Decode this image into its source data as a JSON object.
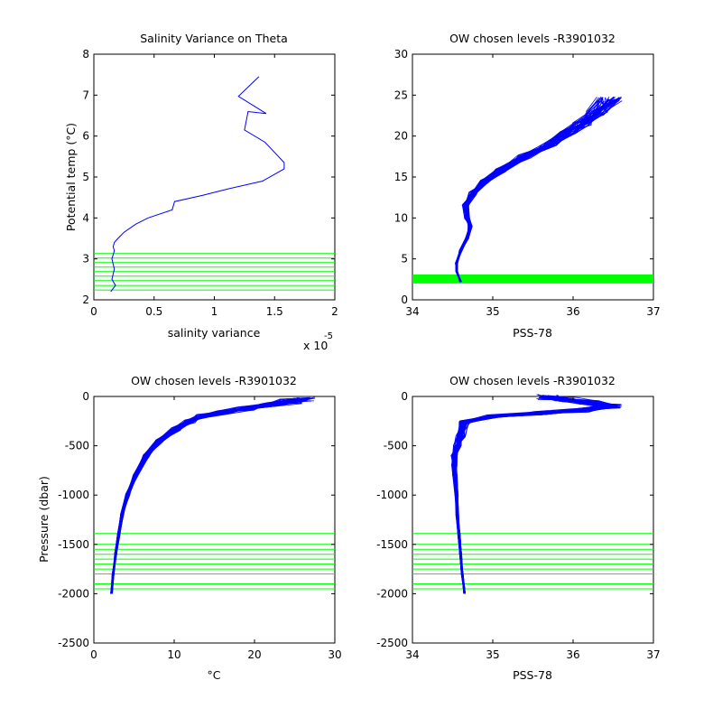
{
  "figure": {
    "background": "#ffffff"
  },
  "chart_data": [
    {
      "id": "p1",
      "type": "line",
      "title": "Salinity Variance on Theta",
      "xlabel": "salinity variance",
      "ylabel": "Potential temp (°C)",
      "x_multiplier_label": "x 10",
      "x_multiplier_exponent": "-5",
      "xlim": [
        0,
        2
      ],
      "ylim": [
        2,
        8
      ],
      "xticks": [
        0,
        0.5,
        1,
        1.5,
        2
      ],
      "yticks": [
        2,
        3,
        4,
        5,
        6,
        7,
        8
      ],
      "series": [
        {
          "color": "#0000ff",
          "x": [
            0.14,
            0.18,
            0.15,
            0.17,
            0.15,
            0.17,
            0.16,
            0.17,
            0.2,
            0.25,
            0.35,
            0.45,
            0.65,
            0.67,
            0.9,
            1.1,
            1.4,
            1.58,
            1.58,
            1.5,
            1.42,
            1.25,
            1.28,
            1.43,
            1.2,
            1.37
          ],
          "y": [
            2.2,
            2.35,
            2.5,
            2.75,
            3.0,
            3.2,
            3.3,
            3.4,
            3.5,
            3.65,
            3.85,
            4.0,
            4.2,
            4.4,
            4.55,
            4.7,
            4.9,
            5.2,
            5.35,
            5.6,
            5.85,
            6.15,
            6.6,
            6.55,
            6.97,
            7.45
          ]
        }
      ],
      "hlines": {
        "color": "#00ff00",
        "y": [
          2.24,
          2.35,
          2.47,
          2.58,
          2.69,
          2.8,
          2.91,
          3.02,
          3.13
        ]
      }
    },
    {
      "id": "p2",
      "type": "line",
      "title": "OW chosen levels -R3901032",
      "xlabel": "PSS-78",
      "ylabel": "",
      "xlim": [
        34,
        37
      ],
      "ylim": [
        0,
        30
      ],
      "xticks": [
        34,
        35,
        36,
        37
      ],
      "yticks": [
        0,
        5,
        10,
        15,
        20,
        25,
        30
      ],
      "profile_color": "#0000ff",
      "bundle": {
        "x": [
          34.6,
          34.55,
          34.55,
          34.6,
          34.68,
          34.72,
          34.68,
          34.66,
          34.75,
          34.9,
          35.1,
          35.4,
          35.7,
          35.95,
          36.1,
          36.3,
          36.45
        ],
        "y": [
          2.2,
          3.5,
          4.5,
          6.0,
          7.5,
          9.0,
          10.0,
          11.5,
          13.0,
          14.5,
          15.8,
          17.5,
          19.0,
          20.5,
          21.5,
          22.8,
          24.5
        ]
      },
      "hband": {
        "color": "#00ff00",
        "y": [
          2.0,
          3.1
        ]
      }
    },
    {
      "id": "p3",
      "type": "line",
      "title": "OW chosen levels -R3901032",
      "xlabel": "°C",
      "ylabel": "Pressure (dbar)",
      "xlim": [
        0,
        30
      ],
      "ylim": [
        -2500,
        0
      ],
      "xticks": [
        0,
        10,
        20,
        30
      ],
      "yticks": [
        -2500,
        -2000,
        -1500,
        -1000,
        -500,
        0
      ],
      "profile_color": "#0000ff",
      "bundle": {
        "x": [
          2.2,
          2.4,
          2.7,
          3.1,
          3.5,
          4.2,
          5.2,
          6.5,
          8.2,
          10.2,
          12.0,
          13.5,
          16.0,
          19.0,
          22.0,
          24.5,
          26.0
        ],
        "y": [
          -2000,
          -1800,
          -1600,
          -1400,
          -1200,
          -1000,
          -800,
          -600,
          -450,
          -330,
          -250,
          -200,
          -160,
          -120,
          -80,
          -50,
          -30
        ]
      },
      "hlines": {
        "color": "#00ff00",
        "y": [
          -1390,
          -1500,
          -1550,
          -1600,
          -1650,
          -1700,
          -1750,
          -1800,
          -1900,
          -1950
        ]
      }
    },
    {
      "id": "p4",
      "type": "line",
      "title": "OW chosen levels -R3901032",
      "xlabel": "PSS-78",
      "ylabel": "",
      "xlim": [
        34,
        37
      ],
      "ylim": [
        -2500,
        0
      ],
      "xticks": [
        34,
        35,
        36,
        37
      ],
      "yticks": [
        -2500,
        -2000,
        -1500,
        -1000,
        -500,
        0
      ],
      "profile_color": "#0000ff",
      "bundle": {
        "x": [
          34.65,
          34.62,
          34.6,
          34.58,
          34.56,
          34.55,
          34.53,
          34.52,
          34.52,
          34.56,
          34.6,
          34.65,
          35.0,
          35.6,
          36.1,
          36.5,
          36.2,
          35.9,
          35.7
        ],
        "y": [
          -2000,
          -1800,
          -1600,
          -1400,
          -1200,
          -1000,
          -800,
          -700,
          -600,
          -500,
          -400,
          -260,
          -200,
          -170,
          -140,
          -100,
          -60,
          -30,
          -5
        ]
      },
      "hlines": {
        "color": "#00ff00",
        "y": [
          -1390,
          -1500,
          -1550,
          -1600,
          -1650,
          -1700,
          -1750,
          -1800,
          -1900,
          -1950
        ]
      }
    }
  ]
}
